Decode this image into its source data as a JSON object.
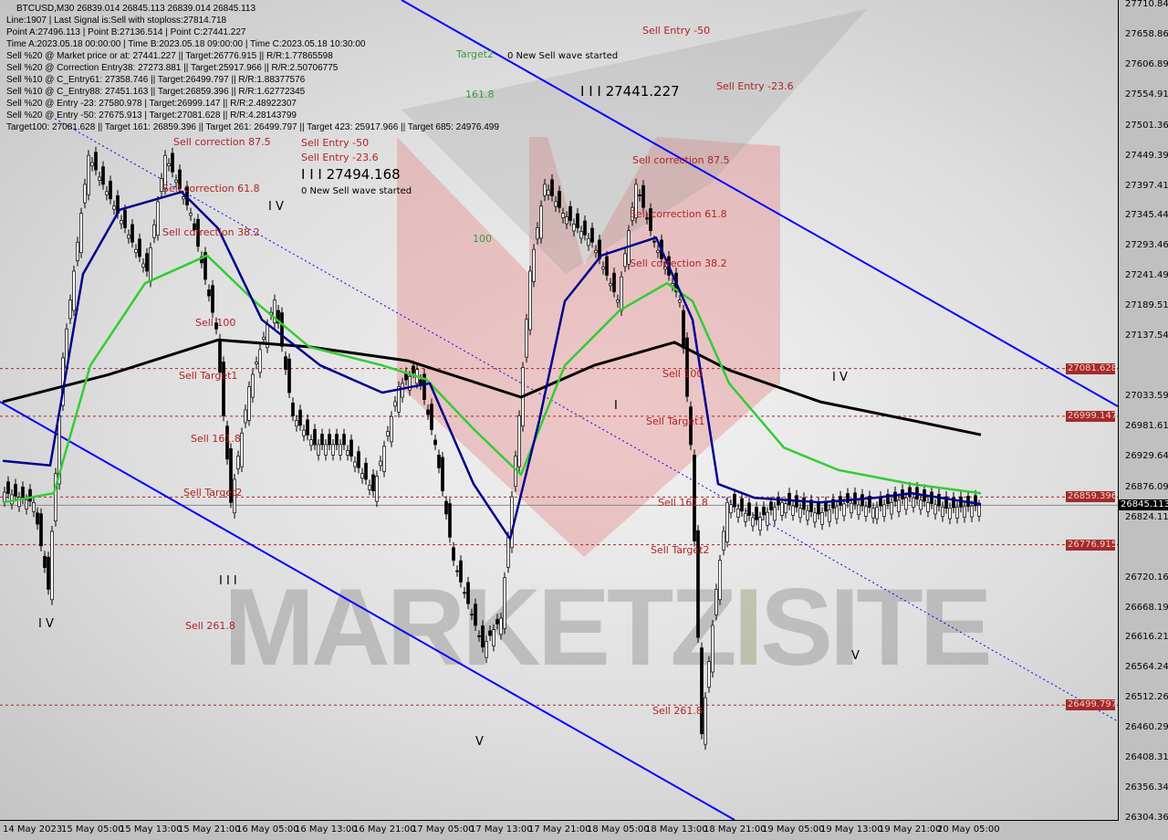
{
  "header": {
    "symbol_line": "BTCUSD,M30  26839.014 26845.113 26839.014 26845.113",
    "info_lines": [
      "Line:1907 | Last Signal is:Sell with stoploss:27814.718",
      "Point A:27496.113 | Point B:27136.514 | Point C:27441.227",
      "Time A:2023.05.18 00:00:00 | Time B:2023.05.18 09:00:00 | Time C:2023.05.18 10:30:00",
      "Sell %20 @ Market price or at: 27441.227 || Target:26776.915 || R/R:1.77865598",
      "Sell %20 @ Correction Entry38: 27273.881 || Target:25917.966 || R/R:2.50706775",
      "Sell %10 @ C_Entry61: 27358.746 || Target:26499.797 || R/R:1.88377576",
      "Sell %10 @ C_Entry88: 27451.163 || Target:26859.396 || R/R:1.62772345",
      "Sell %20 @ Entry -23: 27580.978 | Target:26999.147 || R/R:2.48922307",
      "Sell %20 @ Entry -50: 27675.913 | Target:27081.628 || R/R:4.28143799",
      "Target100: 27081.628 || Target 161: 26859.396 || Target 261: 26499.797 || Target 423: 25917.966 || Target 685: 24976.499"
    ]
  },
  "annotations": {
    "sell_entry_50": "Sell Entry -50",
    "sell_entry_236": "Sell Entry -23.6",
    "target2": "Target2",
    "new_wave": "0 New Sell wave started",
    "fib_1618": "161.8",
    "fib_100": "100",
    "point_c": "I I I 27441.227",
    "point_c_left": "I I I 27494.168",
    "corr_875": "Sell correction 87.5",
    "corr_618": "Sell correction 61.8",
    "corr_382": "Sell correction 38.2",
    "sell_100": "Sell 100",
    "sell_target1": "Sell Target1",
    "sell_1618": "Sell 161.8",
    "sell_target2": "Sell Target2",
    "sell_2618": "Sell 261.8",
    "wave_iv": "I V",
    "wave_iii": "I I I",
    "wave_v": "V",
    "wave_i": "I"
  },
  "watermark": "MARKETZISITE",
  "colors": {
    "candles": "#000000",
    "ma_fast": "#00008b",
    "ma_mid": "#33cc33",
    "ma_slow": "#000000",
    "channel": "#0000ff",
    "levels": "#b22222"
  },
  "chart_data": {
    "type": "candlestick",
    "symbol": "BTCUSD",
    "timeframe": "M30",
    "ylim": [
      26304.365,
      27710.84
    ],
    "y_ticks": [
      "27710.840",
      "27658.865",
      "27606.890",
      "27554.915",
      "27501.365",
      "27449.390",
      "27397.415",
      "27345.440",
      "27293.465",
      "27241.490",
      "27189.515",
      "27137.540",
      "27033.590",
      "26981.615",
      "26929.640",
      "26876.090",
      "26824.115",
      "26720.165",
      "26668.190",
      "26616.215",
      "26564.240",
      "26512.265",
      "26460.290",
      "26408.315",
      "26356.340",
      "26304.365"
    ],
    "x_ticks": [
      "14 May 2023",
      "15 May 05:00",
      "15 May 13:00",
      "15 May 21:00",
      "16 May 05:00",
      "16 May 13:00",
      "16 May 21:00",
      "17 May 05:00",
      "17 May 13:00",
      "17 May 21:00",
      "18 May 05:00",
      "18 May 13:00",
      "18 May 21:00",
      "19 May 05:00",
      "19 May 13:00",
      "19 May 21:00",
      "20 May 05:00"
    ],
    "levels": [
      {
        "price": 27081.628,
        "label": "27081.628"
      },
      {
        "price": 26999.147,
        "label": "26999.147"
      },
      {
        "price": 26859.396,
        "label": "26859.396"
      },
      {
        "price": 26776.915,
        "label": "26776.915"
      },
      {
        "price": 26499.797,
        "label": "26499.797"
      }
    ],
    "current_price": {
      "price": 26845.113,
      "label": "26845.113"
    },
    "close": [
      [
        "05-14 17:30",
        26870
      ],
      [
        "05-14 22:00",
        26850
      ],
      [
        "05-15 00:00",
        26700
      ],
      [
        "05-15 02:00",
        27100
      ],
      [
        "05-15 05:30",
        27450
      ],
      [
        "05-15 09:30",
        27350
      ],
      [
        "05-15 13:30",
        27250
      ],
      [
        "05-15 16:00",
        27450
      ],
      [
        "05-15 19:30",
        27350
      ],
      [
        "05-15 23:00",
        27150
      ],
      [
        "05-16 01:00",
        26850
      ],
      [
        "05-16 03:30",
        27050
      ],
      [
        "05-16 07:00",
        27200
      ],
      [
        "05-16 09:30",
        27000
      ],
      [
        "05-16 12:30",
        26950
      ],
      [
        "05-16 16:30",
        26950
      ],
      [
        "05-16 20:30",
        26870
      ],
      [
        "05-17 00:00",
        27050
      ],
      [
        "05-17 02:30",
        27080
      ],
      [
        "05-17 05:00",
        26950
      ],
      [
        "05-17 07:30",
        26750
      ],
      [
        "05-17 11:30",
        26600
      ],
      [
        "05-17 14:00",
        26650
      ],
      [
        "05-17 16:30",
        27000
      ],
      [
        "05-17 18:00",
        27250
      ],
      [
        "05-17 20:00",
        27400
      ],
      [
        "05-17 22:30",
        27350
      ],
      [
        "05-18 02:30",
        27300
      ],
      [
        "05-18 06:00",
        27200
      ],
      [
        "05-18 08:30",
        27400
      ],
      [
        "05-18 11:00",
        27300
      ],
      [
        "05-18 14:30",
        27200
      ],
      [
        "05-18 16:00",
        26950
      ],
      [
        "05-18 17:30",
        26450
      ],
      [
        "05-18 19:30",
        26700
      ],
      [
        "05-18 21:00",
        26850
      ],
      [
        "05-19 01:00",
        26820
      ],
      [
        "05-19 04:30",
        26850
      ],
      [
        "05-19 09:30",
        26830
      ],
      [
        "05-19 13:30",
        26850
      ],
      [
        "05-19 17:00",
        26840
      ],
      [
        "05-19 22:00",
        26860
      ],
      [
        "05-20 03:00",
        26840
      ],
      [
        "05-20 07:30",
        26845
      ]
    ],
    "ma_fast": [
      [
        "05-14 17:30",
        26922
      ],
      [
        "05-15 00:00",
        26914
      ],
      [
        "05-15 04:30",
        27245
      ],
      [
        "05-15 09:30",
        27356
      ],
      [
        "05-15 18:00",
        27387
      ],
      [
        "05-15 23:00",
        27324
      ],
      [
        "05-16 05:00",
        27166
      ],
      [
        "05-16 13:00",
        27087
      ],
      [
        "05-16 21:30",
        27040
      ],
      [
        "05-17 04:00",
        27056
      ],
      [
        "05-17 10:00",
        26882
      ],
      [
        "05-17 15:00",
        26787
      ],
      [
        "05-17 19:00",
        26992
      ],
      [
        "05-17 22:30",
        27198
      ],
      [
        "05-18 03:30",
        27277
      ],
      [
        "05-18 11:00",
        27308
      ],
      [
        "05-18 16:00",
        27166
      ],
      [
        "05-18 19:30",
        26882
      ],
      [
        "05-19 00:30",
        26858
      ],
      [
        "05-19 09:30",
        26850
      ],
      [
        "05-19 17:00",
        26858
      ],
      [
        "05-19 22:00",
        26866
      ],
      [
        "05-20 07:30",
        26847
      ]
    ],
    "ma_mid": [
      [
        "05-14 17:30",
        26850
      ],
      [
        "05-15 00:30",
        26866
      ],
      [
        "05-15 05:30",
        27087
      ],
      [
        "05-15 13:00",
        27229
      ],
      [
        "05-15 21:30",
        27277
      ],
      [
        "05-16 04:00",
        27198
      ],
      [
        "05-16 11:30",
        27119
      ],
      [
        "05-16 21:30",
        27087
      ],
      [
        "05-17 03:30",
        27063
      ],
      [
        "05-17 10:00",
        26977
      ],
      [
        "05-17 16:30",
        26898
      ],
      [
        "05-17 22:30",
        27087
      ],
      [
        "05-18 06:00",
        27182
      ],
      [
        "05-18 12:30",
        27229
      ],
      [
        "05-18 16:00",
        27198
      ],
      [
        "05-18 21:00",
        27056
      ],
      [
        "05-19 04:30",
        26945
      ],
      [
        "05-19 12:00",
        26906
      ],
      [
        "05-19 22:00",
        26882
      ],
      [
        "05-20 07:30",
        26866
      ]
    ],
    "ma_slow": [
      [
        "05-14 17:30",
        27024
      ],
      [
        "05-15 08:00",
        27071
      ],
      [
        "05-15 23:00",
        27131
      ],
      [
        "05-16 11:30",
        27119
      ],
      [
        "05-17 01:00",
        27095
      ],
      [
        "05-17 16:30",
        27032
      ],
      [
        "05-18 02:30",
        27087
      ],
      [
        "05-18 13:30",
        27127
      ],
      [
        "05-18 21:00",
        27079
      ],
      [
        "05-19 09:30",
        27024
      ],
      [
        "05-19 22:00",
        26992
      ],
      [
        "05-20 07:30",
        26967
      ]
    ]
  }
}
